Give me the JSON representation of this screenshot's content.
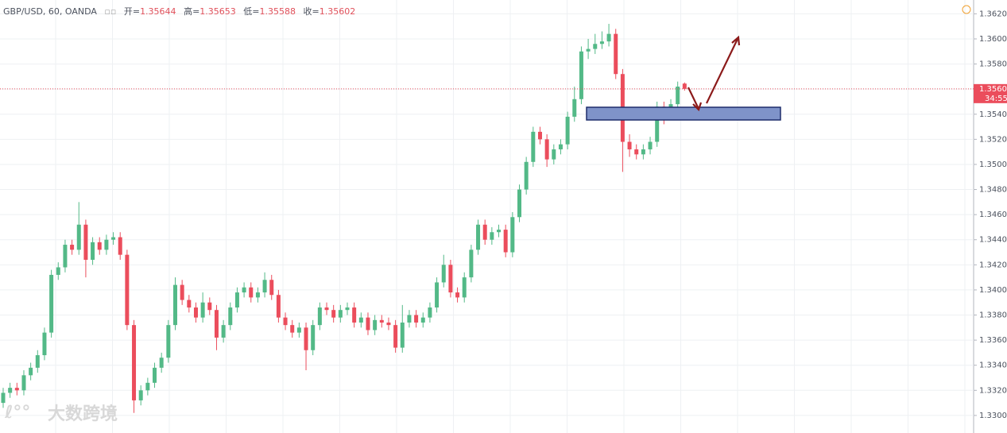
{
  "header": {
    "symbol": "GBP/USD, 60, OANDA",
    "open_label": "开",
    "high_label": "高",
    "low_label": "低",
    "close_label": "收"
  },
  "timer": "34:55",
  "watermark": "大数跨境",
  "chart_data": {
    "type": "candlestick",
    "up_color": "#53b987",
    "down_color": "#eb4d5c",
    "grid": true,
    "ylim": [
      1.3286,
      1.3631
    ],
    "yticks": [
      {
        "value": 1.33,
        "label": "1.33000"
      },
      {
        "value": 1.332,
        "label": "1.33200"
      },
      {
        "value": 1.334,
        "label": "1.33400"
      },
      {
        "value": 1.336,
        "label": "1.33600"
      },
      {
        "value": 1.338,
        "label": "1.33800"
      },
      {
        "value": 1.34,
        "label": "1.34000"
      },
      {
        "value": 1.342,
        "label": "1.34200"
      },
      {
        "value": 1.344,
        "label": "1.34400"
      },
      {
        "value": 1.346,
        "label": "1.34600"
      },
      {
        "value": 1.348,
        "label": "1.34800"
      },
      {
        "value": 1.35,
        "label": "1.35000"
      },
      {
        "value": 1.352,
        "label": "1.35200"
      },
      {
        "value": 1.354,
        "label": "1.35400"
      },
      {
        "value": 1.356,
        "label": "1.35600"
      },
      {
        "value": 1.358,
        "label": "1.35800"
      },
      {
        "value": 1.36,
        "label": "1.36000"
      },
      {
        "value": 1.362,
        "label": "1.36200"
      }
    ],
    "open": [
      1.331,
      1.3318,
      1.3322,
      1.332,
      1.3332,
      1.3338,
      1.3348,
      1.3366,
      1.3412,
      1.3418,
      1.3436,
      1.3432,
      1.3452,
      1.3424,
      1.3438,
      1.3432,
      1.344,
      1.3442,
      1.3428,
      1.3372,
      1.3312,
      1.332,
      1.3326,
      1.3338,
      1.3346,
      1.3372,
      1.3404,
      1.3392,
      1.3386,
      1.3378,
      1.339,
      1.3384,
      1.3362,
      1.3372,
      1.3386,
      1.3398,
      1.3402,
      1.3394,
      1.3398,
      1.3408,
      1.3396,
      1.3378,
      1.3372,
      1.3366,
      1.337,
      1.3352,
      1.3372,
      1.3386,
      1.3384,
      1.3378,
      1.3384,
      1.3386,
      1.3374,
      1.3378,
      1.3368,
      1.3376,
      1.3374,
      1.3372,
      1.3354,
      1.3374,
      1.338,
      1.3374,
      1.3378,
      1.3386,
      1.3406,
      1.342,
      1.3398,
      1.3394,
      1.341,
      1.3432,
      1.3452,
      1.344,
      1.3446,
      1.3448,
      1.343,
      1.3458,
      1.348,
      1.3502,
      1.3526,
      1.352,
      1.3504,
      1.3512,
      1.3516,
      1.3538,
      1.3552,
      1.359,
      1.3592,
      1.3596,
      1.3598,
      1.3604,
      1.3572,
      1.3518,
      1.3512,
      1.3508,
      1.3512,
      1.3518,
      1.3546,
      1.354,
      1.3548,
      1.35644
    ],
    "high": [
      1.3322,
      1.3326,
      1.3326,
      1.3336,
      1.3342,
      1.3352,
      1.337,
      1.3416,
      1.3422,
      1.344,
      1.344,
      1.347,
      1.3456,
      1.3442,
      1.3442,
      1.3444,
      1.3446,
      1.3446,
      1.3432,
      1.3376,
      1.3324,
      1.333,
      1.3342,
      1.335,
      1.3376,
      1.341,
      1.3408,
      1.3396,
      1.339,
      1.3398,
      1.3394,
      1.3388,
      1.3376,
      1.339,
      1.3402,
      1.3406,
      1.3406,
      1.3402,
      1.3414,
      1.3412,
      1.34,
      1.3382,
      1.3376,
      1.3374,
      1.3374,
      1.3376,
      1.339,
      1.339,
      1.3388,
      1.3388,
      1.339,
      1.339,
      1.3382,
      1.3382,
      1.338,
      1.338,
      1.3378,
      1.3376,
      1.3388,
      1.3384,
      1.3384,
      1.3382,
      1.339,
      1.341,
      1.3428,
      1.3424,
      1.3402,
      1.3414,
      1.3436,
      1.3456,
      1.3456,
      1.345,
      1.3452,
      1.3452,
      1.3462,
      1.3484,
      1.3506,
      1.353,
      1.353,
      1.3524,
      1.3516,
      1.352,
      1.3542,
      1.3562,
      1.3594,
      1.36,
      1.3604,
      1.3606,
      1.3612,
      1.3608,
      1.3576,
      1.3524,
      1.3516,
      1.3516,
      1.3522,
      1.355,
      1.355,
      1.3552,
      1.3566,
      1.35653
    ],
    "low": [
      1.3306,
      1.3314,
      1.3316,
      1.3316,
      1.3328,
      1.3334,
      1.3344,
      1.3362,
      1.3408,
      1.3414,
      1.3428,
      1.3428,
      1.341,
      1.342,
      1.3428,
      1.3428,
      1.3436,
      1.3424,
      1.3368,
      1.3302,
      1.3308,
      1.3316,
      1.3322,
      1.3334,
      1.3342,
      1.3368,
      1.3388,
      1.3382,
      1.3374,
      1.3374,
      1.338,
      1.3352,
      1.3358,
      1.3368,
      1.3382,
      1.3394,
      1.339,
      1.339,
      1.3394,
      1.3392,
      1.3374,
      1.3368,
      1.3362,
      1.3362,
      1.3336,
      1.3348,
      1.3368,
      1.338,
      1.3374,
      1.3374,
      1.338,
      1.337,
      1.337,
      1.3364,
      1.3364,
      1.337,
      1.3368,
      1.335,
      1.335,
      1.337,
      1.337,
      1.337,
      1.3374,
      1.3382,
      1.3402,
      1.3394,
      1.339,
      1.339,
      1.3406,
      1.3428,
      1.3436,
      1.3436,
      1.3442,
      1.3426,
      1.3426,
      1.3454,
      1.3476,
      1.3498,
      1.3516,
      1.3498,
      1.35,
      1.3508,
      1.3512,
      1.3534,
      1.3548,
      1.3584,
      1.3588,
      1.3592,
      1.3594,
      1.3568,
      1.3494,
      1.3506,
      1.3504,
      1.3504,
      1.3508,
      1.3514,
      1.3532,
      1.3536,
      1.3544,
      1.35588
    ],
    "close": [
      1.3318,
      1.3322,
      1.332,
      1.3332,
      1.3338,
      1.3348,
      1.3366,
      1.3412,
      1.3418,
      1.3436,
      1.3432,
      1.3452,
      1.3424,
      1.3438,
      1.3432,
      1.344,
      1.3442,
      1.3428,
      1.3372,
      1.3312,
      1.332,
      1.3326,
      1.3338,
      1.3346,
      1.3372,
      1.3404,
      1.3392,
      1.3386,
      1.3378,
      1.339,
      1.3384,
      1.3362,
      1.3372,
      1.3386,
      1.3398,
      1.3402,
      1.3394,
      1.3398,
      1.3408,
      1.3396,
      1.3378,
      1.3372,
      1.3366,
      1.337,
      1.3352,
      1.3372,
      1.3386,
      1.3384,
      1.3378,
      1.3384,
      1.3386,
      1.3374,
      1.3378,
      1.3368,
      1.3376,
      1.3374,
      1.3372,
      1.3354,
      1.3374,
      1.338,
      1.3374,
      1.3378,
      1.3386,
      1.3406,
      1.342,
      1.3398,
      1.3394,
      1.341,
      1.3432,
      1.3452,
      1.344,
      1.3446,
      1.3448,
      1.343,
      1.3458,
      1.348,
      1.3502,
      1.3526,
      1.352,
      1.3504,
      1.3512,
      1.3516,
      1.3538,
      1.3552,
      1.359,
      1.3592,
      1.3596,
      1.3598,
      1.3604,
      1.3572,
      1.3518,
      1.3512,
      1.3508,
      1.3512,
      1.3518,
      1.3546,
      1.354,
      1.3548,
      1.3562,
      1.35602
    ]
  }
}
